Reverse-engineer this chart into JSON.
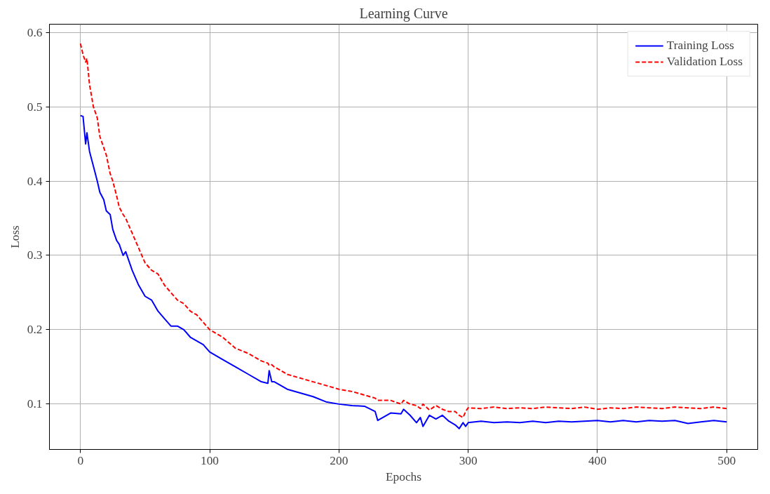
{
  "chart_data": {
    "type": "line",
    "title": "Learning Curve",
    "xlabel": "Epochs",
    "ylabel": "Loss",
    "x": [
      0,
      2,
      4,
      5,
      7,
      10,
      13,
      15,
      18,
      20,
      23,
      25,
      28,
      30,
      33,
      35,
      40,
      45,
      50,
      55,
      60,
      65,
      70,
      75,
      80,
      85,
      90,
      95,
      100,
      110,
      120,
      130,
      140,
      145,
      146,
      148,
      150,
      160,
      170,
      180,
      190,
      200,
      210,
      220,
      228,
      230,
      240,
      248,
      250,
      255,
      260,
      263,
      265,
      270,
      275,
      280,
      285,
      290,
      293,
      296,
      298,
      300,
      310,
      320,
      330,
      340,
      350,
      360,
      370,
      380,
      390,
      400,
      410,
      420,
      430,
      440,
      450,
      460,
      470,
      480,
      490,
      500
    ],
    "series": [
      {
        "name": "Training Loss",
        "color": "#0000ff",
        "line_style": "solid",
        "values": [
          0.488,
          0.487,
          0.45,
          0.465,
          0.44,
          0.42,
          0.4,
          0.385,
          0.375,
          0.36,
          0.355,
          0.335,
          0.32,
          0.315,
          0.3,
          0.305,
          0.28,
          0.26,
          0.245,
          0.24,
          0.225,
          0.215,
          0.205,
          0.205,
          0.2,
          0.19,
          0.185,
          0.18,
          0.17,
          0.16,
          0.15,
          0.14,
          0.13,
          0.128,
          0.145,
          0.13,
          0.13,
          0.12,
          0.115,
          0.11,
          0.103,
          0.1,
          0.098,
          0.097,
          0.09,
          0.078,
          0.088,
          0.087,
          0.093,
          0.085,
          0.075,
          0.082,
          0.07,
          0.085,
          0.08,
          0.085,
          0.077,
          0.072,
          0.067,
          0.075,
          0.07,
          0.075,
          0.077,
          0.075,
          0.076,
          0.075,
          0.077,
          0.075,
          0.077,
          0.076,
          0.077,
          0.078,
          0.076,
          0.078,
          0.076,
          0.078,
          0.077,
          0.078,
          0.074,
          0.076,
          0.078,
          0.076
        ]
      },
      {
        "name": "Validation Loss",
        "color": "#ff0000",
        "line_style": "dashed",
        "values": [
          0.585,
          0.57,
          0.56,
          0.565,
          0.53,
          0.5,
          0.485,
          0.46,
          0.445,
          0.435,
          0.41,
          0.4,
          0.38,
          0.365,
          0.355,
          0.35,
          0.33,
          0.31,
          0.29,
          0.28,
          0.275,
          0.26,
          0.25,
          0.24,
          0.235,
          0.225,
          0.22,
          0.21,
          0.2,
          0.19,
          0.175,
          0.168,
          0.158,
          0.155,
          0.152,
          0.153,
          0.15,
          0.14,
          0.135,
          0.13,
          0.125,
          0.12,
          0.117,
          0.112,
          0.108,
          0.105,
          0.105,
          0.1,
          0.105,
          0.1,
          0.098,
          0.094,
          0.1,
          0.092,
          0.098,
          0.093,
          0.09,
          0.09,
          0.085,
          0.082,
          0.09,
          0.095,
          0.094,
          0.096,
          0.094,
          0.095,
          0.094,
          0.096,
          0.095,
          0.094,
          0.096,
          0.093,
          0.095,
          0.094,
          0.096,
          0.095,
          0.094,
          0.096,
          0.095,
          0.094,
          0.096,
          0.094
        ]
      }
    ],
    "xlim": [
      -24,
      524
    ],
    "ylim": [
      0.039,
      0.611
    ],
    "xticks": [
      0,
      100,
      200,
      300,
      400,
      500
    ],
    "yticks": [
      {
        "value": 0.1,
        "label": "0.1"
      },
      {
        "value": 0.2,
        "label": "0.2"
      },
      {
        "value": 0.3,
        "label": "0.3"
      },
      {
        "value": 0.4,
        "label": "0.4"
      },
      {
        "value": 0.5,
        "label": "0.5"
      },
      {
        "value": 0.6,
        "label": "0.6"
      }
    ],
    "grid": true,
    "legend": "top right"
  }
}
